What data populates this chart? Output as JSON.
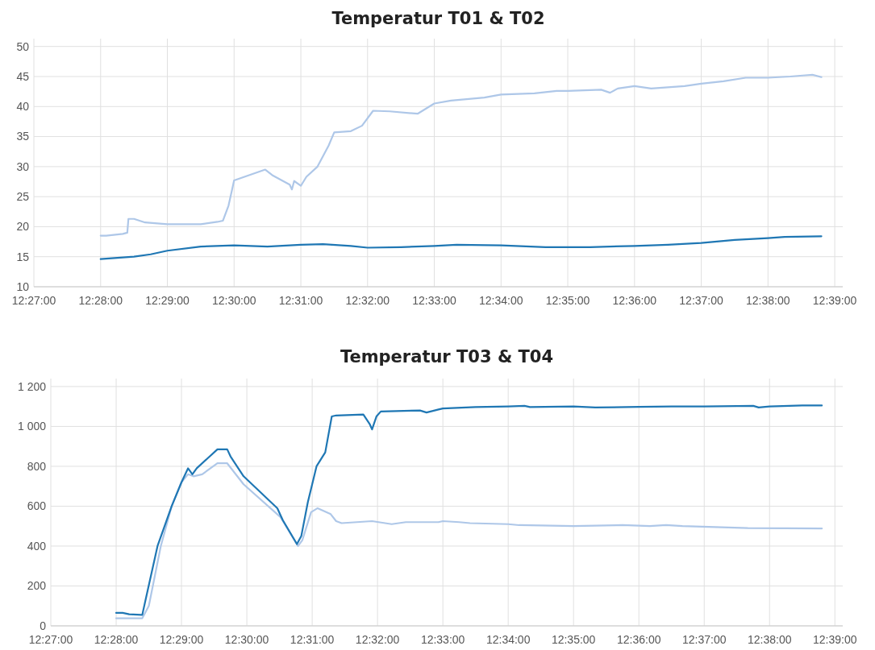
{
  "chart_data": [
    {
      "type": "line",
      "title": "Temperatur T01 & T02",
      "xlim": [
        12.45,
        12.652
      ],
      "xticks": [
        {
          "value": 12.45,
          "label": "12:27:00"
        },
        {
          "value": 12.46667,
          "label": "12:28:00"
        },
        {
          "value": 12.48333,
          "label": "12:29:00"
        },
        {
          "value": 12.5,
          "label": "12:30:00"
        },
        {
          "value": 12.51667,
          "label": "12:31:00"
        },
        {
          "value": 12.53333,
          "label": "12:32:00"
        },
        {
          "value": 12.55,
          "label": "12:33:00"
        },
        {
          "value": 12.56667,
          "label": "12:34:00"
        },
        {
          "value": 12.58333,
          "label": "12:35:00"
        },
        {
          "value": 12.6,
          "label": "12:36:00"
        },
        {
          "value": 12.61667,
          "label": "12:37:00"
        },
        {
          "value": 12.63333,
          "label": "12:38:00"
        },
        {
          "value": 12.65,
          "label": "12:39:00"
        }
      ],
      "ylim": [
        10,
        51.3
      ],
      "yticks": [
        10,
        15,
        20,
        25,
        30,
        35,
        40,
        45,
        50
      ],
      "grid": true,
      "line_style": "solid",
      "series": [
        {
          "color": "#aec7e8",
          "x": [
            12.46667,
            12.46806,
            12.47222,
            12.47333,
            12.47361,
            12.475,
            12.47778,
            12.48333,
            12.49167,
            12.49583,
            12.49722,
            12.49861,
            12.49944,
            12.5,
            12.50778,
            12.50972,
            12.51389,
            12.51444,
            12.515,
            12.51667,
            12.51806,
            12.52083,
            12.52361,
            12.525,
            12.52917,
            12.53194,
            12.53472,
            12.53889,
            12.54583,
            12.55,
            12.55417,
            12.5625,
            12.56667,
            12.575,
            12.58056,
            12.58333,
            12.59167,
            12.59389,
            12.59583,
            12.6,
            12.60417,
            12.6125,
            12.61667,
            12.62222,
            12.62778,
            12.63333,
            12.63889,
            12.64444,
            12.64667
          ],
          "values": [
            18.5,
            18.5,
            18.8,
            19.0,
            21.3,
            21.3,
            20.7,
            20.4,
            20.4,
            20.8,
            21.0,
            23.5,
            26,
            27.7,
            29.5,
            28.5,
            27,
            26.2,
            27.6,
            26.8,
            28.3,
            30,
            33.5,
            35.7,
            35.9,
            36.8,
            39.3,
            39.2,
            38.8,
            40.5,
            41,
            41.5,
            42,
            42.2,
            42.6,
            42.6,
            42.8,
            42.3,
            43,
            43.4,
            43.0,
            43.4,
            43.8,
            44.2,
            44.8,
            44.8,
            45.0,
            45.3,
            44.9
          ]
        },
        {
          "color": "#1f77b4",
          "x": [
            12.46667,
            12.475,
            12.47917,
            12.48333,
            12.49167,
            12.5,
            12.50833,
            12.51667,
            12.52222,
            12.52917,
            12.53333,
            12.54167,
            12.55,
            12.55556,
            12.56667,
            12.57778,
            12.58889,
            12.6,
            12.60833,
            12.61667,
            12.625,
            12.63333,
            12.6375,
            12.64667
          ],
          "values": [
            14.6,
            15.0,
            15.4,
            16.0,
            16.7,
            16.9,
            16.7,
            17.0,
            17.1,
            16.8,
            16.5,
            16.6,
            16.8,
            17.0,
            16.9,
            16.6,
            16.6,
            16.8,
            17.0,
            17.3,
            17.8,
            18.1,
            18.3,
            18.4
          ]
        }
      ]
    },
    {
      "type": "line",
      "title": "Temperatur T03 & T04",
      "xlim": [
        12.45,
        12.652
      ],
      "xticks": [
        {
          "value": 12.45,
          "label": "12:27:00"
        },
        {
          "value": 12.46667,
          "label": "12:28:00"
        },
        {
          "value": 12.48333,
          "label": "12:29:00"
        },
        {
          "value": 12.5,
          "label": "12:30:00"
        },
        {
          "value": 12.51667,
          "label": "12:31:00"
        },
        {
          "value": 12.53333,
          "label": "12:32:00"
        },
        {
          "value": 12.55,
          "label": "12:33:00"
        },
        {
          "value": 12.56667,
          "label": "12:34:00"
        },
        {
          "value": 12.58333,
          "label": "12:35:00"
        },
        {
          "value": 12.6,
          "label": "12:36:00"
        },
        {
          "value": 12.61667,
          "label": "12:37:00"
        },
        {
          "value": 12.63333,
          "label": "12:38:00"
        },
        {
          "value": 12.65,
          "label": "12:39:00"
        }
      ],
      "ylim": [
        0,
        1240
      ],
      "yticks": [
        0,
        200,
        400,
        600,
        800,
        {
          "value": 1000,
          "label": "1 000"
        },
        {
          "value": 1200,
          "label": "1 200"
        }
      ],
      "grid": true,
      "line_style": "solid",
      "series": [
        {
          "color": "#aec7e8",
          "x": [
            12.46667,
            12.47333,
            12.475,
            12.47806,
            12.48083,
            12.48333,
            12.485,
            12.48639,
            12.48861,
            12.4925,
            12.495,
            12.49917,
            12.50861,
            12.51306,
            12.51417,
            12.51639,
            12.51806,
            12.52139,
            12.52278,
            12.52417,
            12.53194,
            12.53694,
            12.54056,
            12.54889,
            12.55,
            12.55417,
            12.55694,
            12.56667,
            12.56944,
            12.58333,
            12.59583,
            12.60278,
            12.60694,
            12.61111,
            12.62778,
            12.64667
          ],
          "values": [
            38,
            38,
            100,
            400,
            600,
            720,
            760,
            750,
            760,
            815,
            815,
            710,
            545,
            400,
            430,
            570,
            590,
            560,
            525,
            515,
            525,
            510,
            520,
            520,
            525,
            520,
            515,
            510,
            505,
            500,
            505,
            500,
            505,
            500,
            490,
            488
          ]
        },
        {
          "color": "#1f77b4",
          "x": [
            12.46667,
            12.46833,
            12.47,
            12.47306,
            12.47333,
            12.47417,
            12.47722,
            12.48083,
            12.48333,
            12.485,
            12.48611,
            12.48722,
            12.49,
            12.4925,
            12.495,
            12.49583,
            12.49917,
            12.50778,
            12.50917,
            12.51278,
            12.51389,
            12.51556,
            12.51778,
            12.52,
            12.52167,
            12.52278,
            12.52972,
            12.53139,
            12.53194,
            12.53306,
            12.53417,
            12.54417,
            12.54583,
            12.54889,
            12.55,
            12.55833,
            12.56667,
            12.57083,
            12.57222,
            12.58333,
            12.58889,
            12.6,
            12.60833,
            12.61667,
            12.62917,
            12.63056,
            12.63333,
            12.64167,
            12.64667
          ],
          "values": [
            65,
            65,
            58,
            55,
            55,
            130,
            400,
            600,
            720,
            790,
            760,
            790,
            840,
            885,
            885,
            850,
            750,
            590,
            530,
            410,
            450,
            620,
            800,
            870,
            1050,
            1055,
            1060,
            1010,
            985,
            1050,
            1075,
            1080,
            1070,
            1085,
            1090,
            1097,
            1100,
            1103,
            1097,
            1100,
            1095,
            1098,
            1100,
            1100,
            1103,
            1095,
            1100,
            1105,
            1105
          ]
        }
      ]
    }
  ]
}
